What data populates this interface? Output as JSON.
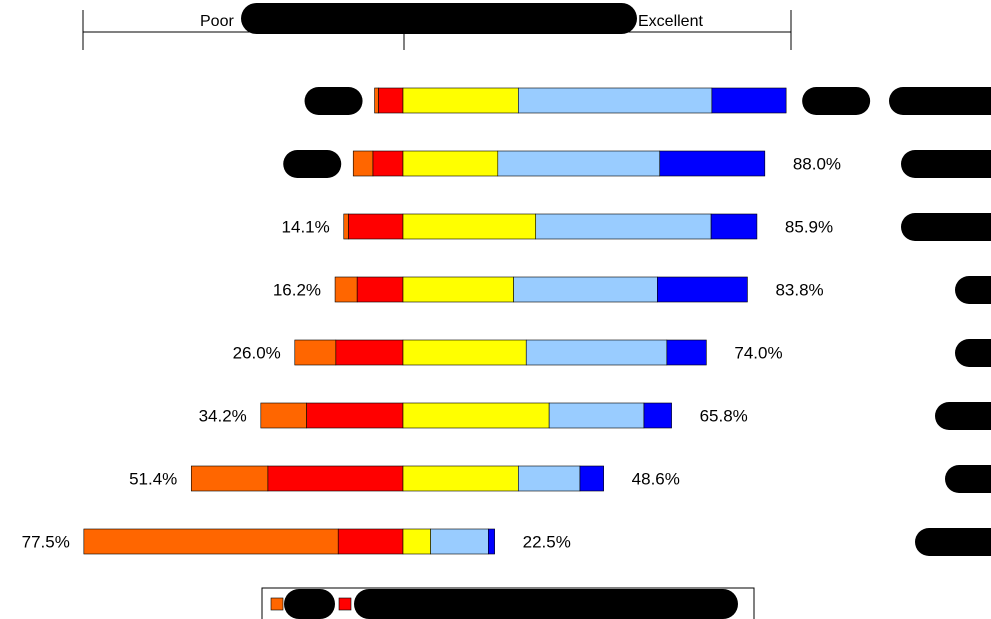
{
  "chart_data": {
    "type": "bar",
    "stacked": "diverging",
    "scale": {
      "left_label": "Poor",
      "right_label": "Excellent"
    },
    "legend_placement": "bottom-center",
    "colors": [
      "#ff6600",
      "#ff0000",
      "#ffff00",
      "#99ccff",
      "#0000ff"
    ],
    "rows": [
      {
        "left_pct_label": "",
        "right_pct_label": "",
        "redacted_left": true,
        "redacted_right": true,
        "segments": [
          0.5,
          3.1,
          14.6,
          24.5,
          9.4
        ]
      },
      {
        "left_pct_label": "",
        "right_pct_label": "88.0%",
        "redacted_left": true,
        "redacted_right": false,
        "segments": [
          2.5,
          3.8,
          12.0,
          20.5,
          13.3
        ]
      },
      {
        "left_pct_label": "14.1%",
        "right_pct_label": "85.9%",
        "redacted_left": false,
        "redacted_right": false,
        "segments": [
          0.6,
          6.9,
          16.8,
          22.2,
          5.8
        ]
      },
      {
        "left_pct_label": "16.2%",
        "right_pct_label": "83.8%",
        "redacted_left": false,
        "redacted_right": false,
        "segments": [
          2.8,
          5.8,
          14.0,
          18.2,
          11.4
        ]
      },
      {
        "left_pct_label": "26.0%",
        "right_pct_label": "74.0%",
        "redacted_left": false,
        "redacted_right": false,
        "segments": [
          5.2,
          8.5,
          15.6,
          17.8,
          5.0
        ]
      },
      {
        "left_pct_label": "34.2%",
        "right_pct_label": "65.8%",
        "redacted_left": false,
        "redacted_right": false,
        "segments": [
          5.8,
          12.2,
          18.5,
          12.0,
          3.5
        ]
      },
      {
        "left_pct_label": "51.4%",
        "right_pct_label": "48.6%",
        "redacted_left": false,
        "redacted_right": false,
        "segments": [
          9.7,
          17.1,
          14.6,
          7.8,
          3.0
        ]
      },
      {
        "left_pct_label": "77.5%",
        "right_pct_label": "22.5%",
        "redacted_left": false,
        "redacted_right": false,
        "segments": [
          32.2,
          8.2,
          3.5,
          7.3,
          0.8
        ]
      }
    ]
  }
}
